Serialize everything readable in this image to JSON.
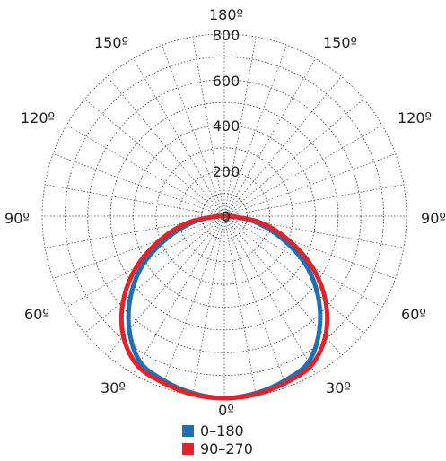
{
  "chart_data": {
    "type": "polar",
    "radial_max": 800,
    "radial_ticks": [
      "800",
      "600",
      "400",
      "200",
      "0"
    ],
    "angle_labels": {
      "top": "180º",
      "bottom": "0º",
      "left_150": "150º",
      "right_150": "150º",
      "left_120": "120º",
      "right_120": "120º",
      "left_90": "90º",
      "right_90": "90º",
      "left_60": "60º",
      "right_60": "60º",
      "left_30": "30º",
      "right_30": "30º"
    },
    "grid": true,
    "legend_position": "bottom",
    "series": [
      {
        "name": "0–180",
        "color": "#1f6fb4",
        "angles_deg": [
          0,
          10,
          20,
          30,
          40,
          50,
          60,
          70,
          80,
          90
        ],
        "values": [
          800,
          790,
          770,
          740,
          650,
          535,
          405,
          255,
          130,
          30
        ]
      },
      {
        "name": "90–270",
        "color": "#e0242b",
        "angles_deg": [
          0,
          10,
          20,
          30,
          40,
          50,
          60,
          70,
          80,
          90
        ],
        "values": [
          800,
          795,
          780,
          760,
          690,
          580,
          445,
          295,
          160,
          30
        ]
      }
    ]
  }
}
